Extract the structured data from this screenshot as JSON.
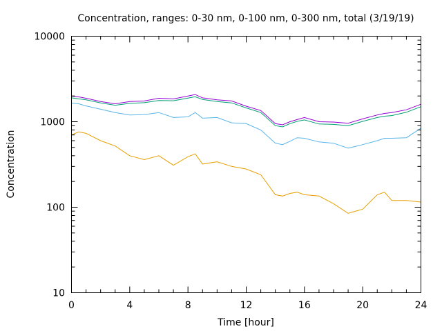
{
  "chart_data": {
    "type": "line",
    "title": "Concentration, ranges: 0-30 nm, 0-100 nm, 0-300 nm, total (3/19/19)",
    "xlabel": "Time [hour]",
    "ylabel": "Concentration",
    "xlim": [
      0,
      24
    ],
    "ylim": [
      10,
      10000
    ],
    "yscale": "log",
    "grid": false,
    "legend": "none",
    "x_ticks": [
      0,
      4,
      8,
      12,
      16,
      20,
      24
    ],
    "x_tick_labels": [
      "0",
      "4",
      "8",
      "12",
      "16",
      "20",
      "24"
    ],
    "y_ticks": [
      10,
      100,
      1000,
      10000
    ],
    "y_tick_labels": [
      "10",
      "100",
      "1000",
      "10000"
    ],
    "x": [
      0,
      0.5,
      1,
      2,
      3,
      4,
      5,
      6,
      7,
      8,
      8.5,
      9,
      10,
      11,
      12,
      13,
      14,
      14.5,
      15,
      15.5,
      16,
      17,
      18,
      19,
      20,
      21,
      21.5,
      22,
      23,
      24
    ],
    "series": [
      {
        "name": "total",
        "color": "#9400d3",
        "values": [
          2000,
          1950,
          1880,
          1720,
          1620,
          1720,
          1750,
          1880,
          1850,
          2000,
          2080,
          1900,
          1800,
          1750,
          1520,
          1350,
          950,
          920,
          1000,
          1060,
          1120,
          1000,
          990,
          960,
          1080,
          1200,
          1250,
          1280,
          1380,
          1600
        ]
      },
      {
        "name": "0-300 nm",
        "color": "#009e73",
        "values": [
          1900,
          1850,
          1800,
          1660,
          1560,
          1640,
          1670,
          1770,
          1760,
          1890,
          1960,
          1820,
          1720,
          1660,
          1450,
          1280,
          900,
          870,
          950,
          1010,
          1050,
          940,
          930,
          900,
          1010,
          1120,
          1160,
          1180,
          1290,
          1500
        ]
      },
      {
        "name": "0-100 nm",
        "color": "#56b4e9",
        "values": [
          1650,
          1620,
          1530,
          1400,
          1280,
          1200,
          1210,
          1280,
          1120,
          1140,
          1280,
          1100,
          1120,
          970,
          950,
          800,
          560,
          540,
          590,
          650,
          640,
          580,
          560,
          490,
          540,
          600,
          640,
          640,
          650,
          840
        ]
      },
      {
        "name": "0-30 nm",
        "color": "#e69f00",
        "values": [
          700,
          760,
          730,
          600,
          520,
          400,
          360,
          400,
          310,
          390,
          420,
          320,
          340,
          300,
          280,
          240,
          140,
          135,
          145,
          150,
          140,
          135,
          110,
          85,
          95,
          140,
          150,
          120,
          120,
          115
        ]
      }
    ]
  }
}
